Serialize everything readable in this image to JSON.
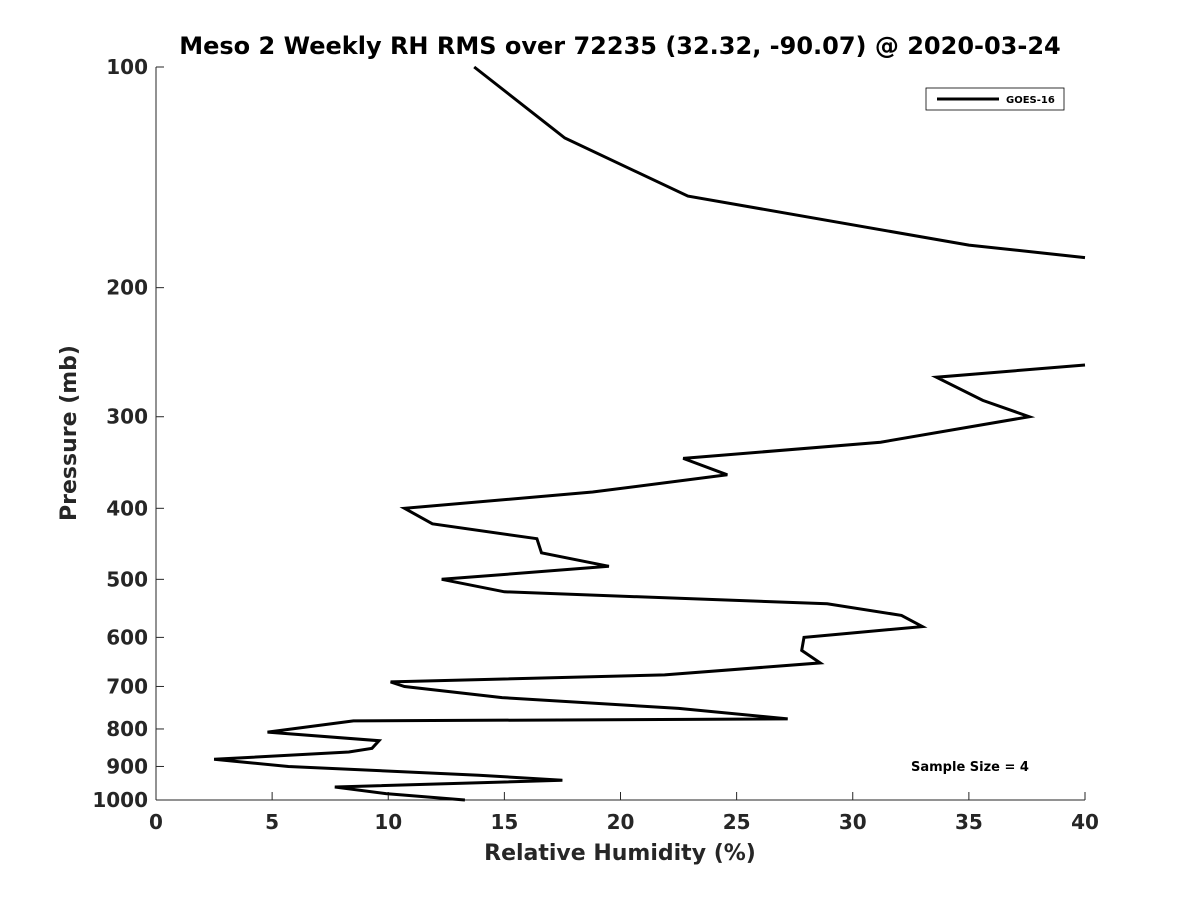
{
  "chart_data": {
    "type": "line",
    "title": "Meso 2 Weekly RH RMS over 72235 (32.32, -90.07) @ 2020-03-24",
    "xlabel": "Relative Humidity (%)",
    "ylabel": "Pressure (mb)",
    "xlim": [
      0,
      40
    ],
    "ylim": [
      1000,
      100
    ],
    "yscale": "log",
    "y_reversed": true,
    "grid": false,
    "legend_position": "top-right",
    "xticks": [
      0,
      5,
      10,
      15,
      20,
      25,
      30,
      35,
      40
    ],
    "yticks": [
      100,
      200,
      300,
      400,
      500,
      600,
      700,
      800,
      900,
      1000
    ],
    "annotation": "Sample Size = 4",
    "series": [
      {
        "name": "GOES-16",
        "color": "#000000",
        "segments": [
          {
            "x": [
              13.7,
              17.6,
              22.9,
              35.0,
              40.0
            ],
            "y": [
              100,
              125,
              150,
              175,
              182
            ]
          },
          {
            "x": [
              40.0,
              33.6,
              35.6,
              37.6,
              31.2,
              22.7,
              24.6,
              18.8,
              10.7,
              11.9,
              16.4,
              16.6,
              19.5,
              12.3,
              15.0,
              28.9,
              32.1,
              33.0,
              27.9,
              27.8,
              28.6,
              21.9,
              10.1,
              10.7,
              14.9,
              22.5,
              27.2,
              8.5,
              4.8,
              9.6,
              9.3,
              8.3,
              2.5,
              5.7,
              13.9,
              17.5,
              7.7,
              9.9,
              13.3
            ],
            "y": [
              255,
              265,
              285,
              300,
              325,
              342,
              360,
              380,
              400,
              420,
              440,
              460,
              480,
              500,
              520,
              540,
              560,
              580,
              600,
              625,
              650,
              675,
              690,
              700,
              725,
              750,
              775,
              780,
              808,
              830,
              850,
              860,
              880,
              900,
              925,
              940,
              960,
              980,
              1000
            ]
          }
        ]
      }
    ]
  }
}
